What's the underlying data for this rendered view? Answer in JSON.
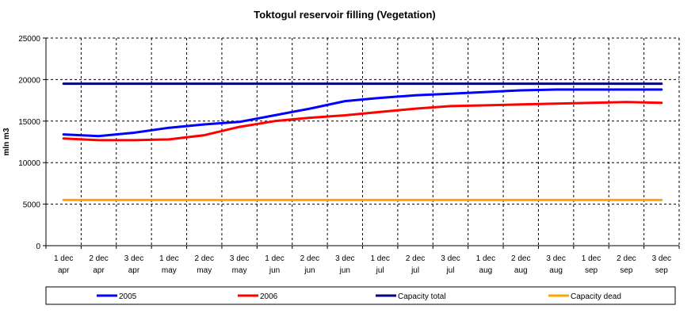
{
  "chart_data": {
    "type": "line",
    "title": "Toktogul  reservoir filling (Vegetation)",
    "xlabel": "",
    "ylabel": "mln m3",
    "ylim": [
      0,
      25000
    ],
    "yticks": [
      0,
      5000,
      10000,
      15000,
      20000,
      25000
    ],
    "grid": true,
    "legend_position": "bottom",
    "categories": [
      {
        "top": "1 dec",
        "bottom": "apr"
      },
      {
        "top": "2 dec",
        "bottom": "apr"
      },
      {
        "top": "3 dec",
        "bottom": "apr"
      },
      {
        "top": "1 dec",
        "bottom": "may"
      },
      {
        "top": "2 dec",
        "bottom": "may"
      },
      {
        "top": "3 dec",
        "bottom": "may"
      },
      {
        "top": "1 dec",
        "bottom": "jun"
      },
      {
        "top": "2 dec",
        "bottom": "jun"
      },
      {
        "top": "3 dec",
        "bottom": "jun"
      },
      {
        "top": "1 dec",
        "bottom": "jul"
      },
      {
        "top": "2 dec",
        "bottom": "jul"
      },
      {
        "top": "3 dec",
        "bottom": "jul"
      },
      {
        "top": "1 dec",
        "bottom": "aug"
      },
      {
        "top": "2 dec",
        "bottom": "aug"
      },
      {
        "top": "3 dec",
        "bottom": "aug"
      },
      {
        "top": "1 dec",
        "bottom": "sep"
      },
      {
        "top": "2 dec",
        "bottom": "sep"
      },
      {
        "top": "3 dec",
        "bottom": "sep"
      }
    ],
    "series": [
      {
        "name": "2005",
        "color": "#0000ff",
        "values": [
          13400,
          13200,
          13600,
          14200,
          14600,
          14900,
          15700,
          16500,
          17400,
          17800,
          18100,
          18300,
          18500,
          18700,
          18800,
          18800,
          18800,
          18800
        ]
      },
      {
        "name": "2006",
        "color": "#ff0000",
        "values": [
          12900,
          12700,
          12700,
          12800,
          13300,
          14300,
          15000,
          15400,
          15700,
          16100,
          16500,
          16800,
          16900,
          17000,
          17100,
          17200,
          17300,
          17200
        ]
      },
      {
        "name": "Capacity total",
        "color": "#000080",
        "values": [
          19500,
          19500,
          19500,
          19500,
          19500,
          19500,
          19500,
          19500,
          19500,
          19500,
          19500,
          19500,
          19500,
          19500,
          19500,
          19500,
          19500,
          19500
        ]
      },
      {
        "name": "Capacity dead",
        "color": "#ffa500",
        "values": [
          5500,
          5500,
          5500,
          5500,
          5500,
          5500,
          5500,
          5500,
          5500,
          5500,
          5500,
          5500,
          5500,
          5500,
          5500,
          5500,
          5500,
          5500
        ]
      }
    ]
  }
}
